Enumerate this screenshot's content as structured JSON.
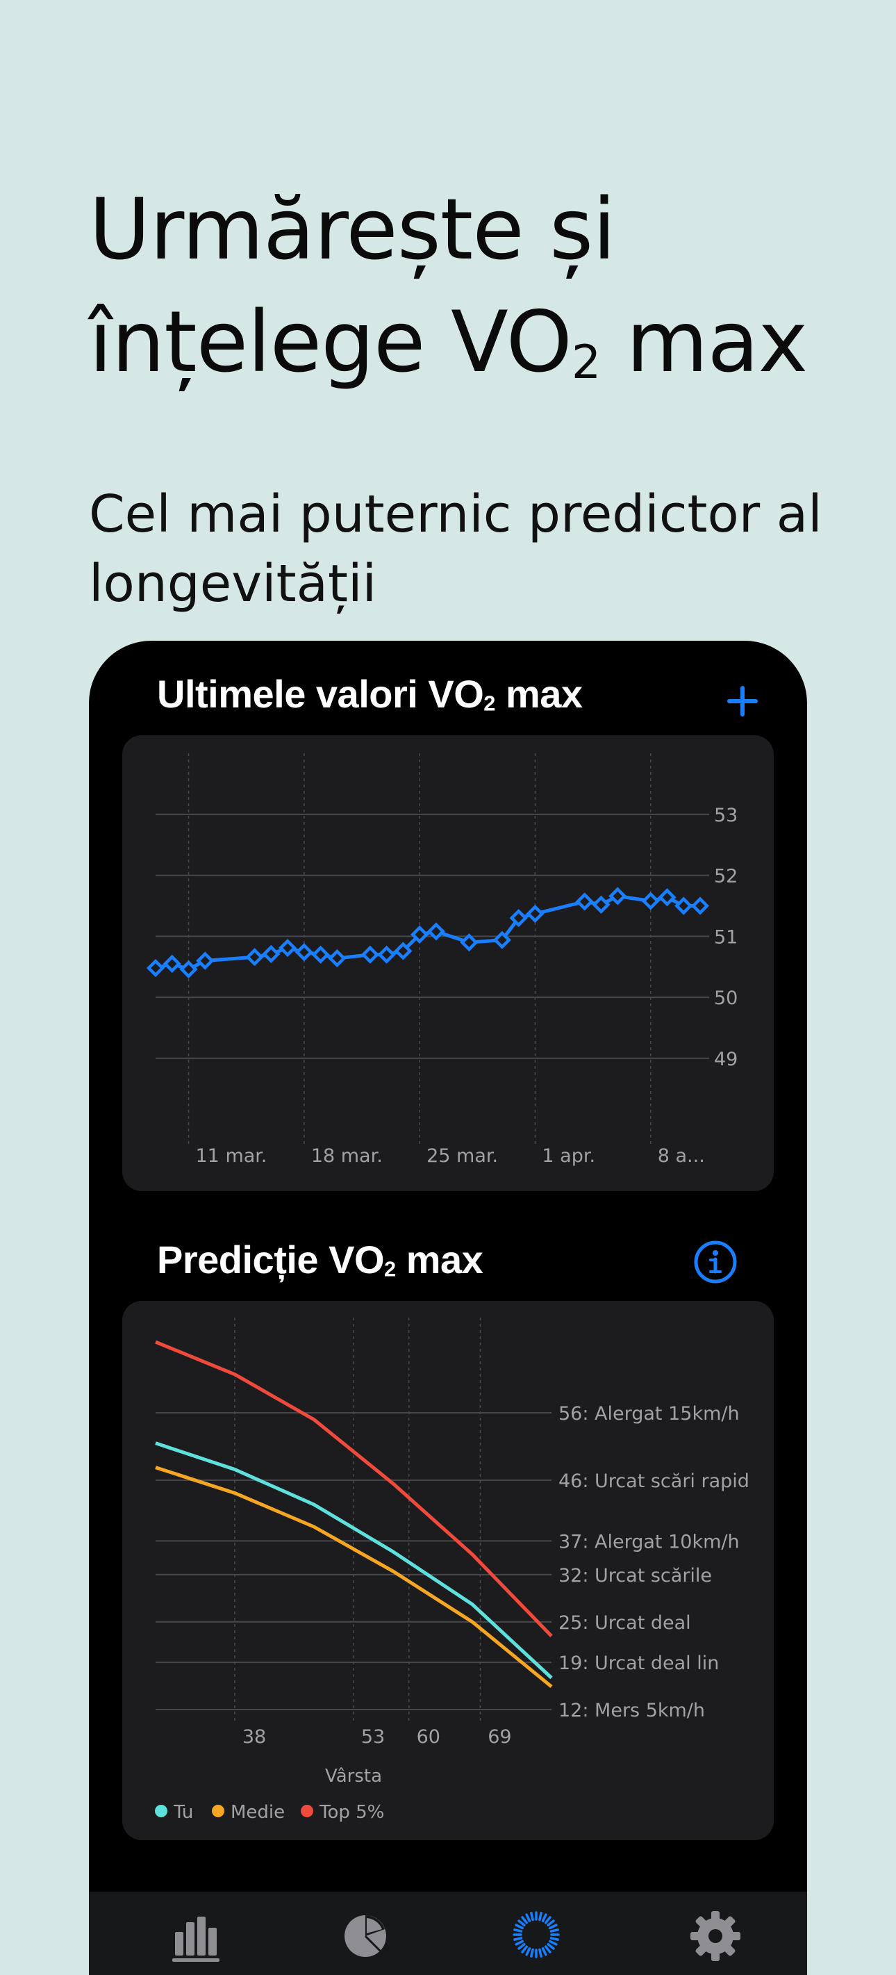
{
  "headline": {
    "line1": "Urmărește și",
    "line2_prefix": "înțelege VO",
    "line2_sub": "2",
    "line2_suffix": " max"
  },
  "subheadline": {
    "line1": "Cel mai puternic predictor al",
    "line2": "longevității"
  },
  "recent_card": {
    "title_prefix": "Ultimele valori VO",
    "title_sub": "2",
    "title_suffix": " max",
    "add_icon": "plus-icon"
  },
  "prediction_card": {
    "title_prefix": "Predicție VO",
    "title_sub": "2",
    "title_suffix": " max",
    "info_icon": "info-circle-icon"
  },
  "tabbar": {
    "tabs": [
      {
        "icon": "bar-chart-icon",
        "active": false
      },
      {
        "icon": "pie-chart-icon",
        "active": false
      },
      {
        "icon": "activity-ring-icon",
        "active": true
      },
      {
        "icon": "gear-icon",
        "active": false
      }
    ]
  },
  "colors": {
    "accent": "#1a7fff",
    "tu": "#5ee0dc",
    "medie": "#f5a623",
    "top5": "#f04a3c"
  },
  "chart_data": [
    {
      "type": "line",
      "title": "Ultimele valori VO₂ max",
      "x_tick_labels": [
        "11 mar.",
        "18 mar.",
        "25 mar.",
        "1 apr.",
        "8 a..."
      ],
      "y_ticks": [
        49,
        50,
        51,
        52,
        53
      ],
      "ylim": [
        48.6,
        53.5
      ],
      "grid": true,
      "series": [
        {
          "x": [
            0,
            1,
            2,
            3,
            6,
            7,
            8,
            9,
            10,
            11,
            13,
            14,
            15,
            16,
            17,
            19,
            21,
            22,
            23,
            26,
            27,
            28,
            30,
            31,
            32,
            33
          ],
          "values": [
            50.48,
            50.55,
            50.46,
            50.6,
            50.66,
            50.71,
            50.81,
            50.74,
            50.7,
            50.64,
            50.7,
            50.7,
            50.76,
            51.03,
            51.08,
            50.9,
            50.94,
            51.3,
            51.37,
            51.57,
            51.52,
            51.66,
            51.58,
            51.64,
            51.5,
            51.5
          ]
        }
      ],
      "x_tick_positions": [
        2,
        9,
        16,
        23,
        30
      ]
    },
    {
      "type": "line",
      "title": "Predicție VO₂ max",
      "xlabel": "Vârsta",
      "x_ticks": [
        38,
        53,
        60,
        69
      ],
      "xlim": [
        28,
        78
      ],
      "ylim": [
        8,
        70
      ],
      "y_ticks": [
        {
          "value": 56,
          "label": "56: Alergat 15km/h"
        },
        {
          "value": 46,
          "label": "46: Urcat scări rapid"
        },
        {
          "value": 37,
          "label": "37: Alergat 10km/h"
        },
        {
          "value": 32,
          "label": "32: Urcat scările"
        },
        {
          "value": 25,
          "label": "25: Urcat deal"
        },
        {
          "value": 19,
          "label": "19: Urcat deal lin"
        },
        {
          "value": 12,
          "label": "12: Mers 5km/h"
        }
      ],
      "legend": [
        "Tu",
        "Medie",
        "Top 5%"
      ],
      "legend_position": "bottom-left",
      "series": [
        {
          "name": "Top 5%",
          "x": [
            28,
            38,
            48,
            58,
            68,
            78
          ],
          "values": [
            66.5,
            61.7,
            55,
            45.5,
            35,
            22.9
          ]
        },
        {
          "name": "Tu",
          "x": [
            28,
            38,
            48,
            58,
            68,
            78
          ],
          "values": [
            51.5,
            47.6,
            42.4,
            35.4,
            27.6,
            16.7
          ]
        },
        {
          "name": "Medie",
          "x": [
            28,
            38,
            48,
            58,
            68,
            78
          ],
          "values": [
            47.9,
            44.1,
            39.1,
            32.5,
            25,
            15.4
          ]
        }
      ]
    }
  ]
}
